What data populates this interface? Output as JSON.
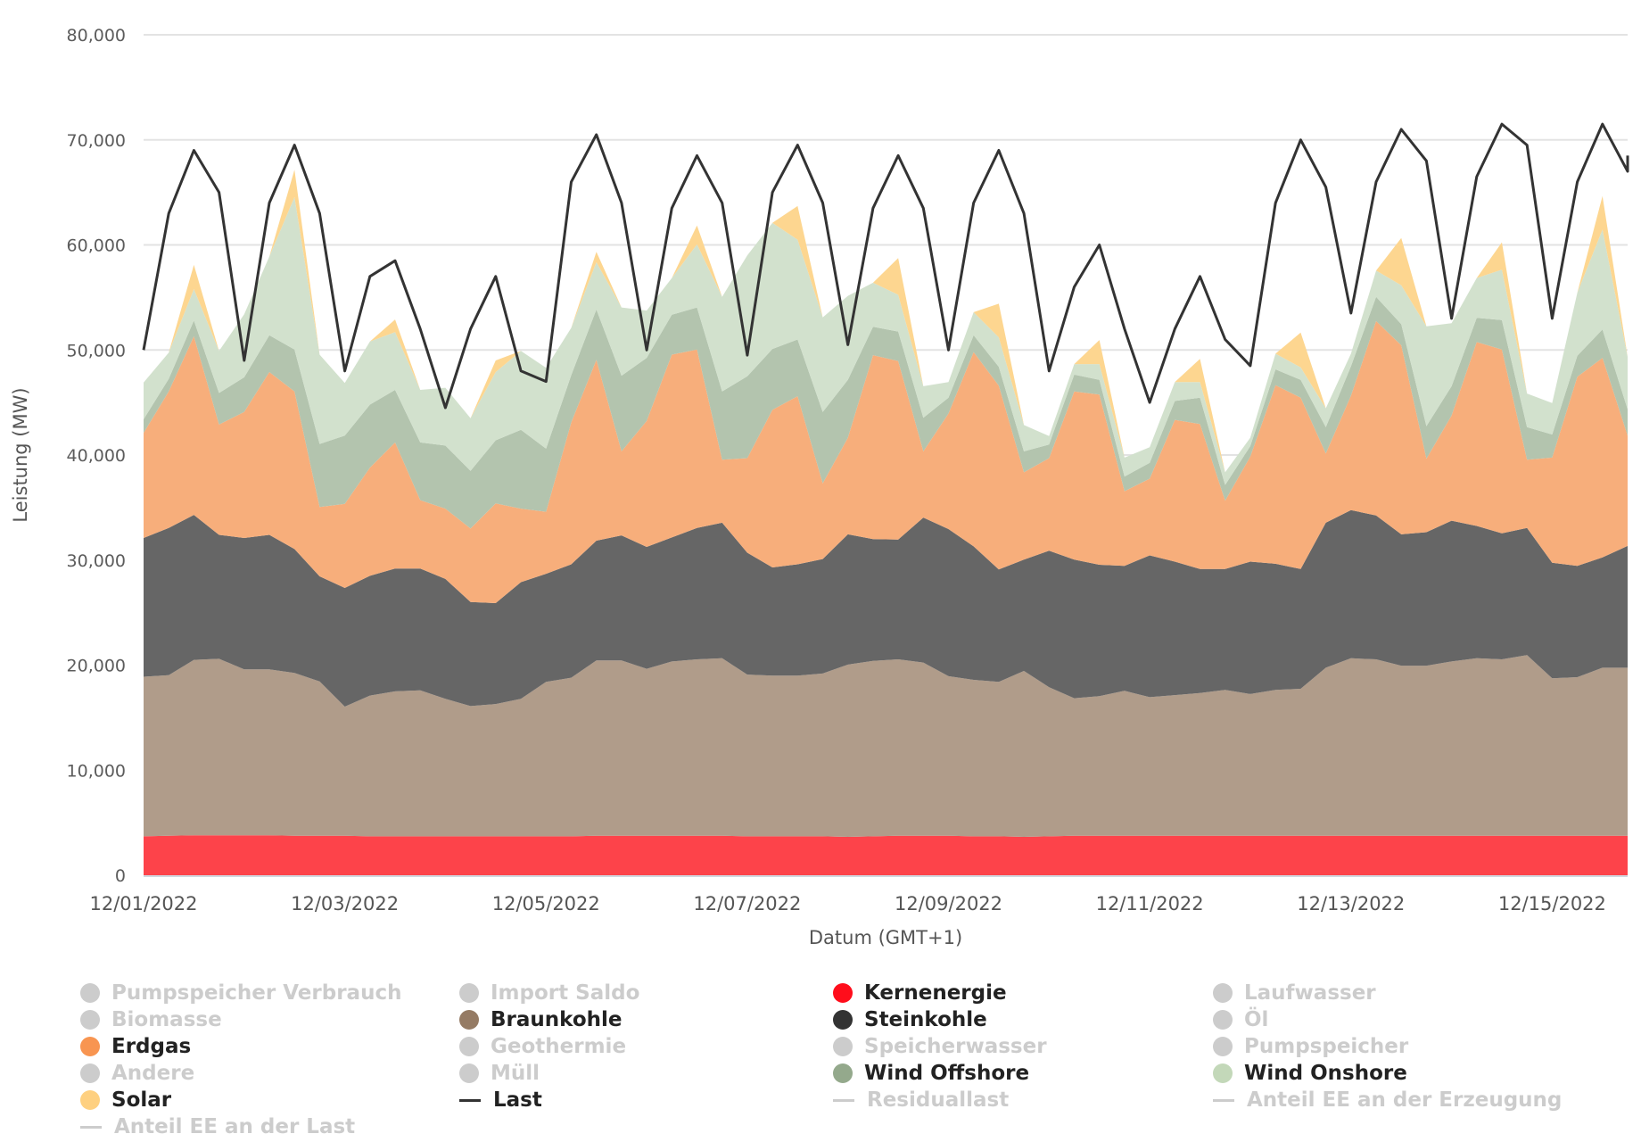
{
  "chart_data": {
    "type": "area",
    "stacked": true,
    "title": "",
    "xlabel": "Datum (GMT+1)",
    "ylabel": "Leistung (MW)",
    "ylim": [
      0,
      80000
    ],
    "yticks": [
      0,
      10000,
      20000,
      30000,
      40000,
      50000,
      60000,
      70000,
      80000
    ],
    "ytick_labels": [
      "0",
      "10,000",
      "20,000",
      "30,000",
      "40,000",
      "50,000",
      "60,000",
      "70,000",
      "80,000"
    ],
    "xlim_days": [
      0,
      14.75
    ],
    "x_start": "12/01/2022",
    "x_step_hours": 6,
    "xticks_days": [
      0,
      2,
      4,
      6,
      8,
      10,
      12,
      14
    ],
    "xtick_labels": [
      "12/01/2022",
      "12/03/2022",
      "12/05/2022",
      "12/07/2022",
      "12/09/2022",
      "12/11/2022",
      "12/13/2022",
      "12/15/2022"
    ],
    "grid": true,
    "legend_position": "bottom",
    "series": [
      {
        "name": "Kernenergie",
        "color": "#ff0d1b",
        "fill": "#fd434a",
        "type": "area",
        "values": [
          3700,
          3750,
          3800,
          3800,
          3800,
          3800,
          3750,
          3750,
          3750,
          3700,
          3700,
          3700,
          3700,
          3700,
          3700,
          3700,
          3700,
          3700,
          3750,
          3750,
          3750,
          3750,
          3750,
          3750,
          3700,
          3700,
          3700,
          3700,
          3650,
          3700,
          3750,
          3750,
          3750,
          3700,
          3700,
          3650,
          3700,
          3750,
          3750,
          3750,
          3750,
          3750,
          3750,
          3750,
          3750,
          3750,
          3750,
          3750,
          3750,
          3750,
          3750,
          3750,
          3750,
          3750,
          3750,
          3750,
          3750,
          3750,
          3750,
          3750
        ]
      },
      {
        "name": "Braunkohle",
        "color": "#957b64",
        "fill": "#b09c8a",
        "type": "area",
        "values": [
          15200,
          15300,
          16700,
          16800,
          15800,
          15800,
          15500,
          14700,
          12300,
          13400,
          13800,
          13900,
          13100,
          12400,
          12600,
          13100,
          14700,
          15100,
          16700,
          16700,
          15900,
          16600,
          16800,
          16900,
          15400,
          15300,
          15300,
          15500,
          16400,
          16700,
          16800,
          16500,
          15200,
          14900,
          14700,
          15800,
          14200,
          13100,
          13300,
          13800,
          13200,
          13400,
          13600,
          13900,
          13500,
          13900,
          14000,
          16000,
          16900,
          16800,
          16200,
          16200,
          16600,
          16900,
          16800,
          17200,
          15000,
          15100,
          16000,
          16000
        ]
      },
      {
        "name": "Steinkohle",
        "color": "#333333",
        "fill": "#666666",
        "type": "area",
        "values": [
          13200,
          14000,
          13800,
          11800,
          12500,
          12800,
          11800,
          10000,
          11300,
          11400,
          11700,
          11600,
          11400,
          9900,
          9600,
          11100,
          10300,
          10800,
          11400,
          11900,
          11600,
          11800,
          12500,
          12900,
          11600,
          10300,
          10600,
          10900,
          12400,
          11600,
          11400,
          13800,
          14000,
          12700,
          10700,
          10600,
          13000,
          13200,
          12500,
          11900,
          13500,
          12700,
          11800,
          11500,
          12600,
          12000,
          11400,
          13800,
          14100,
          13700,
          12500,
          12700,
          13400,
          12600,
          12000,
          12100,
          11000,
          10600,
          10500,
          11600
        ]
      },
      {
        "name": "Erdgas",
        "color": "#f89551",
        "fill": "#f7ae7b",
        "type": "area",
        "values": [
          10000,
          13000,
          17000,
          10500,
          12000,
          15500,
          15000,
          6600,
          8000,
          10300,
          12000,
          6500,
          6700,
          7000,
          9500,
          7000,
          5900,
          13500,
          17200,
          8000,
          12000,
          17400,
          17000,
          6000,
          9000,
          15000,
          16000,
          7200,
          9200,
          17500,
          17000,
          6300,
          11000,
          18500,
          17500,
          8300,
          8800,
          16000,
          16200,
          7100,
          7300,
          13500,
          13800,
          6500,
          10000,
          17000,
          16300,
          6600,
          10900,
          18500,
          18000,
          7000,
          10000,
          17500,
          17500,
          6500,
          10000,
          18000,
          19000,
          10500
        ]
      },
      {
        "name": "Wind Offshore",
        "color": "#94a98c",
        "fill": "#b3c4ae",
        "type": "area",
        "values": [
          1300,
          1200,
          1500,
          3000,
          3300,
          3500,
          4000,
          6000,
          6500,
          6000,
          5000,
          5500,
          6000,
          5500,
          6000,
          7500,
          6000,
          4500,
          4800,
          7200,
          6000,
          3800,
          4000,
          6500,
          7800,
          5800,
          5400,
          6800,
          5500,
          2700,
          2800,
          3200,
          1500,
          1600,
          1800,
          2000,
          1300,
          1600,
          1400,
          1400,
          1500,
          1800,
          2500,
          1500,
          1000,
          1500,
          1700,
          2500,
          2800,
          2300,
          2000,
          3100,
          2800,
          2300,
          2800,
          3100,
          2200,
          2000,
          2700,
          2500
        ]
      },
      {
        "name": "Wind Onshore",
        "color": "#c3d8b9",
        "fill": "#d2e1cd",
        "type": "area",
        "values": [
          3500,
          2500,
          3000,
          4000,
          6000,
          7500,
          14500,
          8500,
          5000,
          6000,
          5500,
          5000,
          5500,
          5000,
          6500,
          7500,
          7700,
          4500,
          4500,
          6500,
          4500,
          3500,
          6000,
          9000,
          11500,
          12000,
          9500,
          9000,
          8000,
          4200,
          3500,
          3000,
          1500,
          2200,
          2800,
          2500,
          800,
          1000,
          1500,
          1800,
          1500,
          1800,
          1500,
          1200,
          800,
          1500,
          1200,
          1800,
          1200,
          2500,
          3700,
          9500,
          6000,
          3800,
          4800,
          3200,
          3000,
          6000,
          9500,
          5000
        ]
      },
      {
        "name": "Solar",
        "color": "#fed080",
        "fill": "#fdd690",
        "type": "area",
        "values": [
          0,
          0,
          2300,
          0,
          0,
          0,
          2600,
          0,
          0,
          0,
          1200,
          0,
          0,
          0,
          1100,
          0,
          0,
          0,
          1000,
          0,
          0,
          0,
          1800,
          0,
          0,
          0,
          3200,
          0,
          0,
          0,
          3500,
          0,
          0,
          0,
          3200,
          0,
          0,
          0,
          2300,
          0,
          0,
          0,
          2200,
          0,
          0,
          0,
          3300,
          0,
          0,
          0,
          4500,
          0,
          0,
          0,
          2600,
          0,
          0,
          0,
          3200,
          0
        ]
      },
      {
        "name": "Last",
        "color": "#333333",
        "type": "line",
        "values": [
          50000,
          63000,
          69000,
          65000,
          49000,
          64000,
          69500,
          63000,
          48000,
          57000,
          58500,
          52000,
          44500,
          52000,
          57000,
          48000,
          47000,
          66000,
          70500,
          64000,
          50000,
          63500,
          68500,
          64000,
          49500,
          65000,
          69500,
          64000,
          50500,
          63500,
          68500,
          63500,
          50000,
          64000,
          69000,
          63000,
          48000,
          56000,
          60000,
          52000,
          45000,
          52000,
          57000,
          51000,
          48500,
          64000,
          70000,
          65500,
          53500,
          66000,
          71000,
          68000,
          53000,
          66500,
          71500,
          69500,
          53000,
          66000,
          71500,
          67000
        ]
      },
      {
        "name": "Pumpspeicher Verbrauch",
        "color": "#cccccc",
        "visible": false
      },
      {
        "name": "Import Saldo",
        "color": "#cccccc",
        "visible": false
      },
      {
        "name": "Biomasse",
        "color": "#cccccc",
        "visible": false
      },
      {
        "name": "Laufwasser",
        "color": "#cccccc",
        "visible": false
      },
      {
        "name": "Öl",
        "color": "#cccccc",
        "visible": false
      },
      {
        "name": "Geothermie",
        "color": "#cccccc",
        "visible": false
      },
      {
        "name": "Speicherwasser",
        "color": "#cccccc",
        "visible": false
      },
      {
        "name": "Pumpspeicher",
        "color": "#cccccc",
        "visible": false
      },
      {
        "name": "Andere",
        "color": "#cccccc",
        "visible": false
      },
      {
        "name": "Müll",
        "color": "#cccccc",
        "visible": false
      },
      {
        "name": "Residuallast",
        "color": "#cccccc",
        "visible": false
      },
      {
        "name": "Anteil EE an der Erzeugung",
        "color": "#cccccc",
        "visible": false
      },
      {
        "name": "Anteil EE an der Last",
        "color": "#cccccc",
        "visible": false
      }
    ]
  },
  "legend": [
    {
      "label": "Pumpspeicher Verbrauch",
      "symbol": "dot",
      "color": "#cccccc",
      "active": false
    },
    {
      "label": "Import Saldo",
      "symbol": "dot",
      "color": "#cccccc",
      "active": false
    },
    {
      "label": "Kernenergie",
      "symbol": "dot",
      "color": "#ff0d1b",
      "active": true
    },
    {
      "label": "Laufwasser",
      "symbol": "dot",
      "color": "#cccccc",
      "active": false
    },
    {
      "label": "Biomasse",
      "symbol": "dot",
      "color": "#cccccc",
      "active": false
    },
    {
      "label": "Braunkohle",
      "symbol": "dot",
      "color": "#957b64",
      "active": true
    },
    {
      "label": "Steinkohle",
      "symbol": "dot",
      "color": "#333333",
      "active": true
    },
    {
      "label": "Öl",
      "symbol": "dot",
      "color": "#cccccc",
      "active": false
    },
    {
      "label": "Erdgas",
      "symbol": "dot",
      "color": "#f89551",
      "active": true
    },
    {
      "label": "Geothermie",
      "symbol": "dot",
      "color": "#cccccc",
      "active": false
    },
    {
      "label": "Speicherwasser",
      "symbol": "dot",
      "color": "#cccccc",
      "active": false
    },
    {
      "label": "Pumpspeicher",
      "symbol": "dot",
      "color": "#cccccc",
      "active": false
    },
    {
      "label": "Andere",
      "symbol": "dot",
      "color": "#cccccc",
      "active": false
    },
    {
      "label": "Müll",
      "symbol": "dot",
      "color": "#cccccc",
      "active": false
    },
    {
      "label": "Wind Offshore",
      "symbol": "dot",
      "color": "#94a98c",
      "active": true
    },
    {
      "label": "Wind Onshore",
      "symbol": "dot",
      "color": "#c3d8b9",
      "active": true
    },
    {
      "label": "Solar",
      "symbol": "dot",
      "color": "#fed080",
      "active": true
    },
    {
      "label": "Last",
      "symbol": "line",
      "color": "#333333",
      "active": true
    },
    {
      "label": "Residuallast",
      "symbol": "line",
      "color": "#cccccc",
      "active": false
    },
    {
      "label": "Anteil EE an der Erzeugung",
      "symbol": "line",
      "color": "#cccccc",
      "active": false
    },
    {
      "label": "Anteil EE an der Last",
      "symbol": "line",
      "color": "#cccccc",
      "active": false
    }
  ]
}
